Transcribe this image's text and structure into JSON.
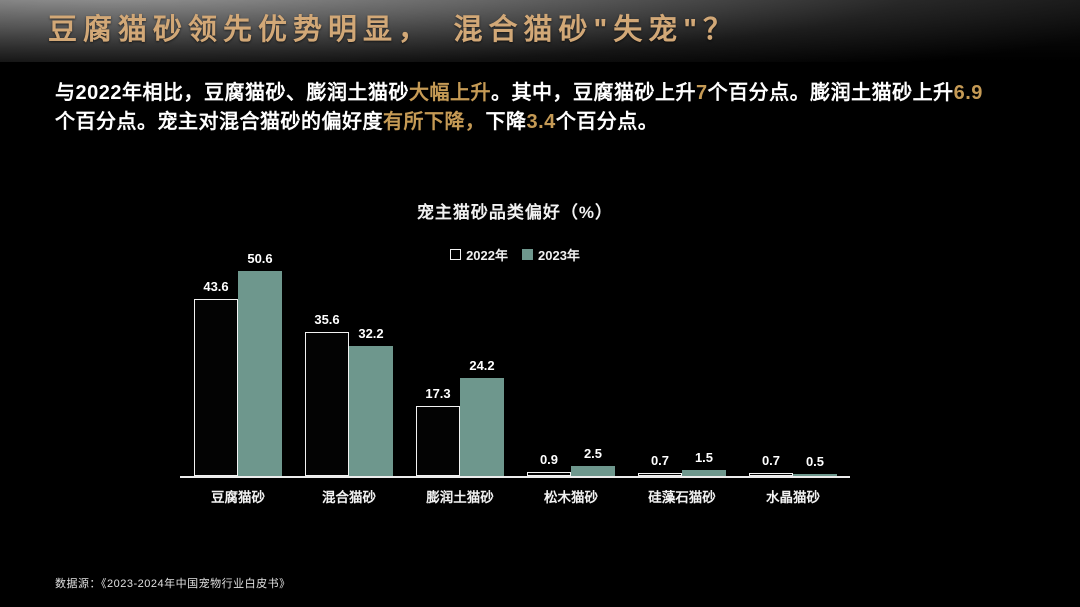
{
  "header": {
    "title": "豆腐猫砂领先优势明显，　混合猫砂\"失宠\"？"
  },
  "intro": {
    "lines": [
      [
        {
          "t": "与2022年相比，豆腐猫砂、膨润土猫砂",
          "hl": false
        },
        {
          "t": "大幅上升",
          "hl": true
        },
        {
          "t": "。其中，豆腐猫砂上升",
          "hl": false
        },
        {
          "t": "7",
          "hl": true
        },
        {
          "t": "个百分点。膨润土猫砂上升",
          "hl": false
        },
        {
          "t": "6.9",
          "hl": true
        }
      ],
      [
        {
          "t": "个百分点。宠主对混合猫砂的偏好度",
          "hl": false
        },
        {
          "t": "有所下降，",
          "hl": true
        },
        {
          "t": "下降",
          "hl": false
        },
        {
          "t": "3.4",
          "hl": true
        },
        {
          "t": "个百分点。",
          "hl": false
        }
      ]
    ]
  },
  "chart_data": {
    "type": "bar",
    "title": "宠主猫砂品类偏好（%）",
    "categories": [
      "豆腐猫砂",
      "混合猫砂",
      "膨润土猫砂",
      "松木猫砂",
      "硅藻石猫砂",
      "水晶猫砂"
    ],
    "series": [
      {
        "name": "2022年",
        "style": "outline",
        "values": [
          43.6,
          35.6,
          17.3,
          0.9,
          0.7,
          0.7
        ]
      },
      {
        "name": "2023年",
        "style": "fill",
        "color": "#6e978d",
        "values": [
          50.6,
          32.2,
          24.2,
          2.5,
          1.5,
          0.5
        ]
      }
    ],
    "ylim": [
      0,
      51.3
    ],
    "value_labels": true,
    "legend_position": "top-center",
    "grid": false
  },
  "footer": {
    "source": "数据源：《2023-2024年中国宠物行业白皮书》"
  },
  "colors": {
    "title_gold": "#d2a877",
    "highlight_gold": "#c59a55",
    "teal": "#6e978d",
    "background": "#000000",
    "text": "#ffffff"
  }
}
